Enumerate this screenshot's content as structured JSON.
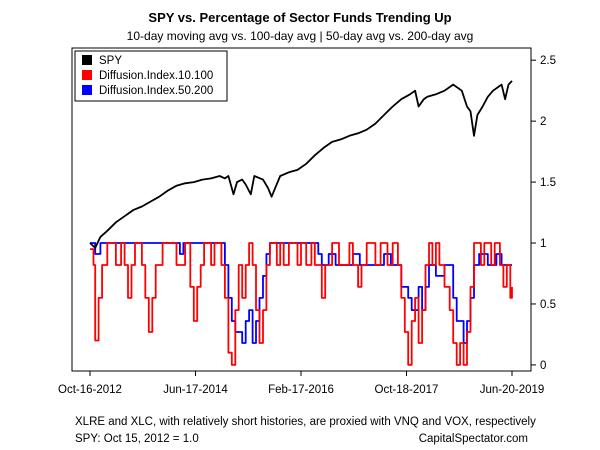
{
  "chart_data": {
    "type": "line",
    "title": "SPY vs. Percentage of Sector Funds Trending Up",
    "subtitle": "10-day moving avg vs. 100-day avg | 50-day avg vs. 200-day avg",
    "x_tick_labels": [
      "Oct-16-2012",
      "Jun-17-2014",
      "Feb-17-2016",
      "Oct-18-2017",
      "Jun-20-2019"
    ],
    "y_ticks": [
      0,
      0.5,
      1,
      1.5,
      2,
      2.5
    ],
    "y_tick_labels": [
      "0",
      "0.5",
      "1",
      "1.5",
      "2",
      "2.5"
    ],
    "ylim": [
      -0.05,
      2.6
    ],
    "y_axis_side": "right",
    "legend_position": "top-left",
    "grid": false,
    "footnote": "XLRE and XLC, with relatively short histories, are proxied with VNQ and VOX, respectively",
    "base_note": "SPY: Oct 15, 2012 = 1.0",
    "source": "CapitalSpectator.com",
    "series": [
      {
        "name": "SPY",
        "color": "#000000",
        "style": "line",
        "points": [
          [
            0,
            1.0
          ],
          [
            0.03,
            0.96
          ],
          [
            0.06,
            1.05
          ],
          [
            0.1,
            1.1
          ],
          [
            0.15,
            1.17
          ],
          [
            0.2,
            1.22
          ],
          [
            0.25,
            1.27
          ],
          [
            0.3,
            1.3
          ],
          [
            0.35,
            1.34
          ],
          [
            0.4,
            1.38
          ],
          [
            0.45,
            1.43
          ],
          [
            0.5,
            1.47
          ],
          [
            0.55,
            1.49
          ],
          [
            0.6,
            1.5
          ],
          [
            0.65,
            1.52
          ],
          [
            0.7,
            1.53
          ],
          [
            0.75,
            1.55
          ],
          [
            0.78,
            1.53
          ],
          [
            0.8,
            1.55
          ],
          [
            0.83,
            1.4
          ],
          [
            0.85,
            1.5
          ],
          [
            0.88,
            1.52
          ],
          [
            0.9,
            1.48
          ],
          [
            0.93,
            1.4
          ],
          [
            0.95,
            1.55
          ],
          [
            1.0,
            1.52
          ],
          [
            1.03,
            1.45
          ],
          [
            1.05,
            1.38
          ],
          [
            1.07,
            1.45
          ],
          [
            1.1,
            1.55
          ],
          [
            1.15,
            1.58
          ],
          [
            1.2,
            1.6
          ],
          [
            1.25,
            1.65
          ],
          [
            1.3,
            1.72
          ],
          [
            1.35,
            1.78
          ],
          [
            1.4,
            1.83
          ],
          [
            1.45,
            1.85
          ],
          [
            1.5,
            1.88
          ],
          [
            1.55,
            1.9
          ],
          [
            1.6,
            1.93
          ],
          [
            1.65,
            1.98
          ],
          [
            1.7,
            2.05
          ],
          [
            1.75,
            2.12
          ],
          [
            1.8,
            2.18
          ],
          [
            1.85,
            2.22
          ],
          [
            1.88,
            2.25
          ],
          [
            1.9,
            2.12
          ],
          [
            1.93,
            2.18
          ],
          [
            1.95,
            2.2
          ],
          [
            2.0,
            2.22
          ],
          [
            2.05,
            2.25
          ],
          [
            2.1,
            2.3
          ],
          [
            2.15,
            2.25
          ],
          [
            2.18,
            2.12
          ],
          [
            2.2,
            2.08
          ],
          [
            2.22,
            1.88
          ],
          [
            2.24,
            2.05
          ],
          [
            2.27,
            2.12
          ],
          [
            2.3,
            2.2
          ],
          [
            2.33,
            2.25
          ],
          [
            2.36,
            2.28
          ],
          [
            2.38,
            2.3
          ],
          [
            2.4,
            2.18
          ],
          [
            2.42,
            2.3
          ],
          [
            2.44,
            2.33
          ]
        ]
      },
      {
        "name": "Diffusion.Index.10.100",
        "color": "#ff0000",
        "style": "step",
        "points": [
          [
            0,
            0.95
          ],
          [
            0.02,
            0.82
          ],
          [
            0.03,
            0.2
          ],
          [
            0.05,
            0.55
          ],
          [
            0.07,
            0.82
          ],
          [
            0.1,
            1.0
          ],
          [
            0.15,
            0.82
          ],
          [
            0.18,
            1.0
          ],
          [
            0.2,
            0.82
          ],
          [
            0.22,
            0.55
          ],
          [
            0.24,
            0.82
          ],
          [
            0.26,
            1.0
          ],
          [
            0.3,
            0.82
          ],
          [
            0.32,
            0.55
          ],
          [
            0.34,
            0.27
          ],
          [
            0.36,
            0.55
          ],
          [
            0.38,
            0.82
          ],
          [
            0.42,
            1.0
          ],
          [
            0.5,
            0.82
          ],
          [
            0.55,
            1.0
          ],
          [
            0.58,
            0.64
          ],
          [
            0.6,
            0.36
          ],
          [
            0.62,
            0.64
          ],
          [
            0.64,
            0.82
          ],
          [
            0.66,
            1.0
          ],
          [
            0.7,
            0.82
          ],
          [
            0.72,
            1.0
          ],
          [
            0.76,
            0.82
          ],
          [
            0.78,
            0.55
          ],
          [
            0.8,
            0.1
          ],
          [
            0.82,
            0.0
          ],
          [
            0.84,
            0.45
          ],
          [
            0.86,
            0.82
          ],
          [
            0.88,
            0.55
          ],
          [
            0.9,
            0.82
          ],
          [
            0.92,
            1.0
          ],
          [
            0.94,
            0.82
          ],
          [
            0.96,
            0.45
          ],
          [
            0.98,
            0.18
          ],
          [
            1.0,
            0.45
          ],
          [
            1.02,
            0.82
          ],
          [
            1.04,
            1.0
          ],
          [
            1.08,
            0.82
          ],
          [
            1.1,
            1.0
          ],
          [
            1.12,
            0.82
          ],
          [
            1.15,
            1.0
          ],
          [
            1.2,
            0.82
          ],
          [
            1.22,
            1.0
          ],
          [
            1.25,
            0.82
          ],
          [
            1.28,
            1.0
          ],
          [
            1.3,
            0.82
          ],
          [
            1.34,
            0.55
          ],
          [
            1.36,
            0.82
          ],
          [
            1.4,
            1.0
          ],
          [
            1.44,
            0.82
          ],
          [
            1.5,
            1.0
          ],
          [
            1.52,
            0.82
          ],
          [
            1.55,
            0.64
          ],
          [
            1.57,
            0.82
          ],
          [
            1.6,
            1.0
          ],
          [
            1.65,
            0.82
          ],
          [
            1.68,
            1.0
          ],
          [
            1.72,
            0.82
          ],
          [
            1.75,
            1.0
          ],
          [
            1.78,
            0.82
          ],
          [
            1.8,
            0.55
          ],
          [
            1.82,
            0.27
          ],
          [
            1.84,
            0.0
          ],
          [
            1.86,
            0.36
          ],
          [
            1.88,
            0.55
          ],
          [
            1.9,
            0.18
          ],
          [
            1.92,
            0.45
          ],
          [
            1.94,
            0.82
          ],
          [
            1.96,
            1.0
          ],
          [
            1.98,
            0.82
          ],
          [
            2.0,
            1.0
          ],
          [
            2.02,
            0.82
          ],
          [
            2.05,
            0.64
          ],
          [
            2.08,
            0.45
          ],
          [
            2.1,
            0.18
          ],
          [
            2.12,
            0.0
          ],
          [
            2.14,
            0.18
          ],
          [
            2.16,
            0.0
          ],
          [
            2.18,
            0.27
          ],
          [
            2.2,
            0.64
          ],
          [
            2.22,
            1.0
          ],
          [
            2.26,
            0.82
          ],
          [
            2.28,
            1.0
          ],
          [
            2.32,
            0.82
          ],
          [
            2.34,
            1.0
          ],
          [
            2.37,
            0.82
          ],
          [
            2.39,
            0.64
          ],
          [
            2.41,
            0.82
          ],
          [
            2.43,
            0.55
          ],
          [
            2.44,
            0.64
          ]
        ]
      },
      {
        "name": "Diffusion.Index.50.200",
        "color": "#0000ff",
        "style": "step",
        "points": [
          [
            0,
            1.0
          ],
          [
            0.03,
            0.91
          ],
          [
            0.06,
            1.0
          ],
          [
            0.5,
            1.0
          ],
          [
            0.52,
            0.91
          ],
          [
            0.54,
            1.0
          ],
          [
            0.75,
            1.0
          ],
          [
            0.78,
            0.82
          ],
          [
            0.8,
            0.55
          ],
          [
            0.82,
            0.36
          ],
          [
            0.84,
            0.27
          ],
          [
            0.86,
            0.27
          ],
          [
            0.88,
            0.18
          ],
          [
            0.9,
            0.36
          ],
          [
            0.92,
            0.45
          ],
          [
            0.94,
            0.18
          ],
          [
            0.96,
            0.36
          ],
          [
            0.98,
            0.55
          ],
          [
            1.0,
            0.73
          ],
          [
            1.02,
            0.91
          ],
          [
            1.04,
            1.0
          ],
          [
            1.3,
            1.0
          ],
          [
            1.32,
            0.91
          ],
          [
            1.34,
            0.82
          ],
          [
            1.38,
            0.91
          ],
          [
            1.42,
            0.82
          ],
          [
            1.5,
            0.82
          ],
          [
            1.52,
            0.91
          ],
          [
            1.56,
            0.82
          ],
          [
            1.6,
            0.82
          ],
          [
            1.65,
            0.82
          ],
          [
            1.7,
            0.91
          ],
          [
            1.74,
            0.82
          ],
          [
            1.8,
            0.64
          ],
          [
            1.84,
            0.55
          ],
          [
            1.86,
            0.45
          ],
          [
            1.9,
            0.64
          ],
          [
            1.92,
            0.45
          ],
          [
            1.94,
            0.64
          ],
          [
            1.96,
            0.82
          ],
          [
            2.0,
            0.73
          ],
          [
            2.05,
            0.82
          ],
          [
            2.1,
            0.55
          ],
          [
            2.12,
            0.36
          ],
          [
            2.14,
            0.36
          ],
          [
            2.16,
            0.18
          ],
          [
            2.18,
            0.36
          ],
          [
            2.2,
            0.55
          ],
          [
            2.22,
            0.82
          ],
          [
            2.25,
            0.91
          ],
          [
            2.3,
            0.82
          ],
          [
            2.35,
            0.91
          ],
          [
            2.38,
            0.82
          ],
          [
            2.44,
            0.82
          ]
        ]
      }
    ]
  }
}
